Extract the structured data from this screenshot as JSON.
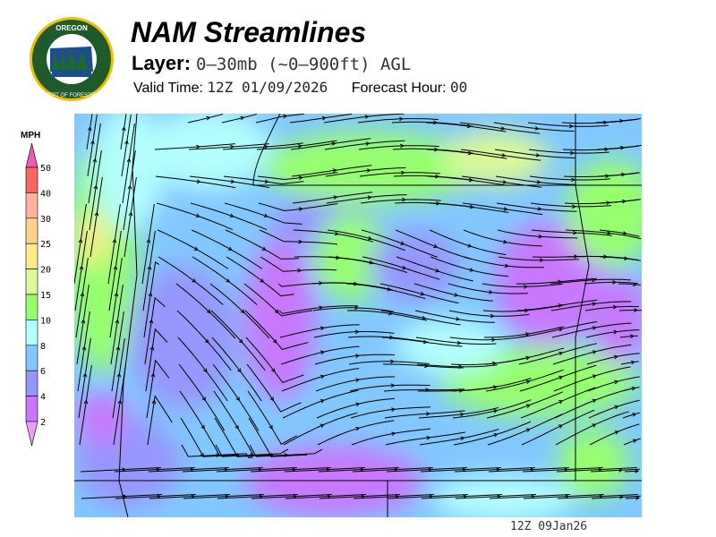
{
  "header": {
    "logo_text": "OREGON DEPARTMENT OF FORESTRY",
    "title": "NAM Streamlines",
    "layer_label": "Layer:",
    "layer_value": "0–30mb (~0–900ft) AGL",
    "valid_time_label": "Valid Time:",
    "valid_time_value": "12Z 01/09/2026",
    "forecast_hour_label": "Forecast Hour:",
    "forecast_hour_value": "00"
  },
  "colorbar": {
    "unit": "MPH",
    "levels": [
      "50",
      "40",
      "30",
      "25",
      "20",
      "15",
      "10",
      "8",
      "6",
      "4",
      "2"
    ],
    "colors": [
      "#ff6464",
      "#ffb4a0",
      "#ffd28c",
      "#ffeb8c",
      "#dcfa96",
      "#96ff6e",
      "#b4ffff",
      "#82c8ff",
      "#9696ff",
      "#c878ff"
    ],
    "over_color": "#f05ab4",
    "under_color": "#e8a0f8"
  },
  "map": {
    "region": "Oregon and surroundings",
    "field": "wind speed with streamlines"
  },
  "footer": {
    "timestamp": "12Z 09Jan26"
  }
}
